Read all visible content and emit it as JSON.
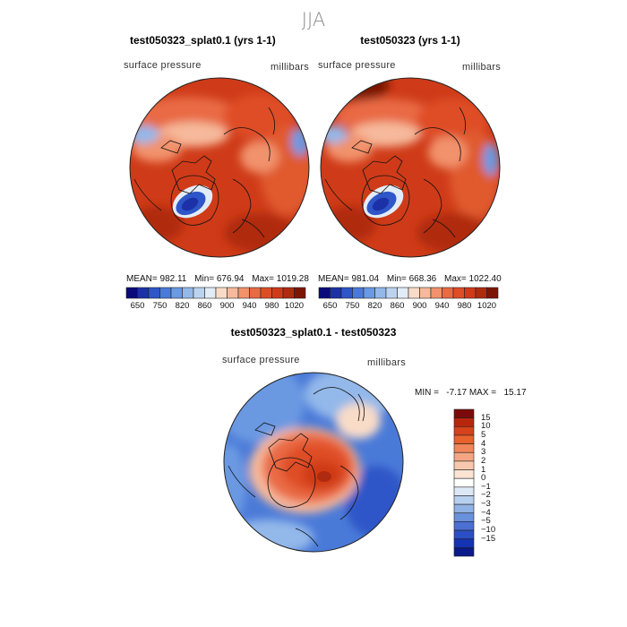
{
  "season": "JJA",
  "panel_left": {
    "title": "test050323_splat0.1 (yrs 1-1)",
    "field": "surface pressure",
    "units": "millibars",
    "stats": {
      "mean_label": "MEAN=",
      "mean": "982.11",
      "min_label": "Min=",
      "min": "676.94",
      "max_label": "Max=",
      "max": "1019.28"
    }
  },
  "panel_right": {
    "title": "test050323 (yrs 1-1)",
    "field": "surface pressure",
    "units": "millibars",
    "stats": {
      "mean_label": "MEAN=",
      "mean": "981.04",
      "min_label": "Min=",
      "min": "668.36",
      "max_label": "Max=",
      "max": "1022.40"
    }
  },
  "panel_diff": {
    "title": "test050323_splat0.1 - test050323",
    "field": "surface pressure",
    "units": "millibars",
    "stats_text": "MIN =   -7.17 MAX =   15.17"
  },
  "colorbar_top": {
    "colors": [
      "#0a0a7a",
      "#1c31a8",
      "#2f56c8",
      "#4a7ad8",
      "#6b99e2",
      "#93b8ea",
      "#bcd3f0",
      "#e2ecf6",
      "#f9dcc8",
      "#f6b99b",
      "#f1926c",
      "#e96a45",
      "#df4d27",
      "#cf3b18",
      "#b02a10",
      "#7d1505"
    ],
    "labels": [
      "650",
      "750",
      "820",
      "860",
      "900",
      "940",
      "980",
      "1020"
    ]
  },
  "colorbar_diff": {
    "colors": [
      "#7d0a0a",
      "#b8260d",
      "#d6421b",
      "#e9612c",
      "#f08659",
      "#f4a684",
      "#f8c8ad",
      "#fbe4d4",
      "#ffffff",
      "#dce8f6",
      "#b8d0ef",
      "#90b2e5",
      "#6a91dc",
      "#4a70d3",
      "#2c4fc6",
      "#1433b3",
      "#0a1a8a"
    ],
    "labels": [
      "15",
      "10",
      "5",
      "4",
      "3",
      "2",
      "1",
      "0",
      "-1",
      "-2",
      "-3",
      "-4",
      "-5",
      "-10",
      "-15"
    ]
  }
}
